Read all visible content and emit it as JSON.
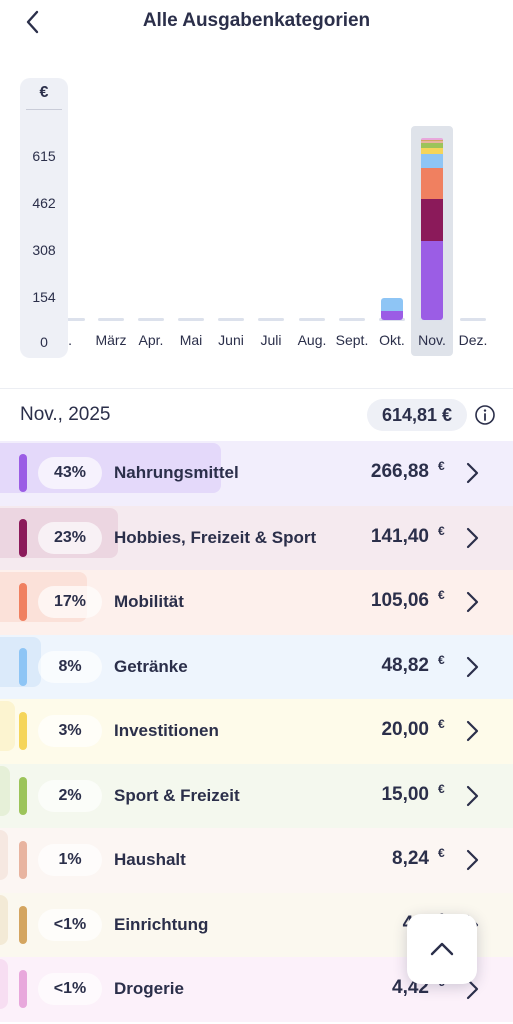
{
  "header": {
    "title": "Alle Ausgabenkategorien",
    "back_icon": "chevron-left-icon"
  },
  "chart_data": {
    "type": "bar",
    "stacked": true,
    "y_unit": "€",
    "yticks": [
      "615",
      "462",
      "308",
      "154",
      "0"
    ],
    "ylim": [
      0,
      615
    ],
    "categories": [
      "Feb.",
      "März",
      "Apr.",
      "Mai",
      "Juni",
      "Juli",
      "Aug.",
      "Sept.",
      "Okt.",
      "Nov.",
      "Dez."
    ],
    "visible_category_labels": [
      "eb.",
      "März",
      "Apr.",
      "Mai",
      "Juni",
      "Juli",
      "Aug.",
      "Sept.",
      "Okt.",
      "Nov.",
      "Dez."
    ],
    "selected_category": "Nov.",
    "series": [
      {
        "name": "Nahrungsmittel",
        "color": "#9b5de5",
        "values": [
          0,
          0,
          0,
          0,
          0,
          0,
          0,
          0,
          30,
          266.88,
          0
        ]
      },
      {
        "name": "Hobbies, Freizeit & Sport",
        "color": "#8b1a5a",
        "values": [
          0,
          0,
          0,
          0,
          0,
          0,
          0,
          0,
          0,
          141.4,
          0
        ]
      },
      {
        "name": "Mobilität",
        "color": "#f08060",
        "values": [
          0,
          0,
          0,
          0,
          0,
          0,
          0,
          0,
          0,
          105.06,
          0
        ]
      },
      {
        "name": "Getränke",
        "color": "#8ec5f5",
        "values": [
          0,
          0,
          0,
          0,
          0,
          0,
          0,
          0,
          45,
          48.82,
          0
        ]
      },
      {
        "name": "Investitionen",
        "color": "#f5d55a",
        "values": [
          0,
          0,
          0,
          0,
          0,
          0,
          0,
          0,
          0,
          20.0,
          0
        ]
      },
      {
        "name": "Sport & Freizeit",
        "color": "#9cc45a",
        "values": [
          0,
          0,
          0,
          0,
          0,
          0,
          0,
          0,
          0,
          15.0,
          0
        ]
      },
      {
        "name": "Haushalt",
        "color": "#e8b4a0",
        "values": [
          0,
          0,
          0,
          0,
          0,
          0,
          0,
          0,
          0,
          8.24,
          0
        ]
      },
      {
        "name": "Einrichtung",
        "color": "#d4a560",
        "values": [
          0,
          0,
          0,
          0,
          0,
          0,
          0,
          0,
          0,
          4.9,
          0
        ]
      },
      {
        "name": "Drogerie",
        "color": "#e8a8dc",
        "values": [
          0,
          0,
          0,
          0,
          0,
          0,
          0,
          0,
          0,
          4.42,
          0
        ]
      }
    ]
  },
  "summary": {
    "period": "Nov., 2025",
    "total": "614,81 €",
    "info_icon": "info-circle-icon"
  },
  "categories": [
    {
      "pct": "43%",
      "share": 0.43,
      "name": "Nahrungsmittel",
      "amount": "266,88",
      "currency": "€",
      "color": "#9b5de5",
      "bg": "#f2eefc",
      "fill": "#e4d9fa"
    },
    {
      "pct": "23%",
      "share": 0.23,
      "name": "Hobbies, Freizeit & Sport",
      "amount": "141,40",
      "currency": "€",
      "color": "#8b1a5a",
      "bg": "#f5eaef",
      "fill": "#ecd6e1"
    },
    {
      "pct": "17%",
      "share": 0.17,
      "name": "Mobilität",
      "amount": "105,06",
      "currency": "€",
      "color": "#f08060",
      "bg": "#fdf0ec",
      "fill": "#fbe1d9"
    },
    {
      "pct": "8%",
      "share": 0.08,
      "name": "Getränke",
      "amount": "48,82",
      "currency": "€",
      "color": "#8ec5f5",
      "bg": "#eef5fd",
      "fill": "#dbeafa"
    },
    {
      "pct": "3%",
      "share": 0.03,
      "name": "Investitionen",
      "amount": "20,00",
      "currency": "€",
      "color": "#f5d55a",
      "bg": "#fefbea",
      "fill": "#fcf4d0"
    },
    {
      "pct": "2%",
      "share": 0.02,
      "name": "Sport & Freizeit",
      "amount": "15,00",
      "currency": "€",
      "color": "#9cc45a",
      "bg": "#f4f8ee",
      "fill": "#e6f0d8"
    },
    {
      "pct": "1%",
      "share": 0.01,
      "name": "Haushalt",
      "amount": "8,24",
      "currency": "€",
      "color": "#e8b4a0",
      "bg": "#fcf6f3",
      "fill": "#f6e8e1"
    },
    {
      "pct": "<1%",
      "share": 0.008,
      "name": "Einrichtung",
      "amount": "4,9",
      "currency": "€",
      "color": "#d4a560",
      "bg": "#fbf8ef",
      "fill": "#f3ead6"
    },
    {
      "pct": "<1%",
      "share": 0.007,
      "name": "Drogerie",
      "amount": "4,42",
      "currency": "€",
      "color": "#e8a8dc",
      "bg": "#fcf1fa",
      "fill": "#f7def2"
    }
  ],
  "scroll_top": {
    "icon": "chevron-up-icon"
  }
}
